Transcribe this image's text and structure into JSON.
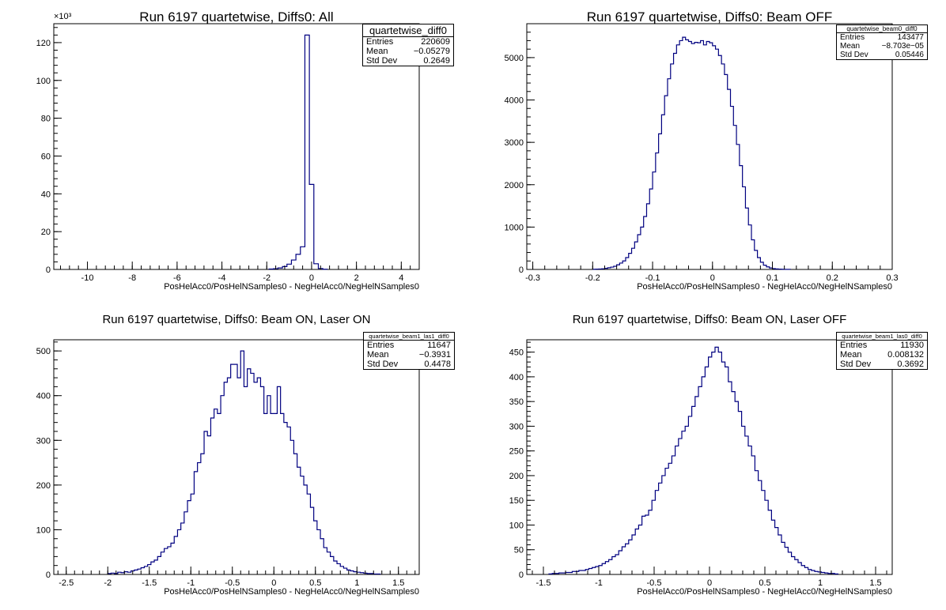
{
  "canvas_title": "",
  "xlabel_common": "PosHelAcc0/PosHelNSamples0 - NegHelAcc0/NegHelNSamples0",
  "colors": {
    "line": "#000080",
    "axis": "#000000",
    "background": "#ffffff"
  },
  "chart_data": [
    {
      "type": "bar",
      "title": "Run 6197 quartetwise, Diffs0: All",
      "xlabel": "PosHelAcc0/PosHelNSamples0 - NegHelAcc0/NegHelNSamples0",
      "ylabel": "",
      "y_exponent_label": "×10³",
      "xlim": [
        -11.5,
        4.8
      ],
      "ylim": [
        0,
        130000
      ],
      "xticks": [
        -10,
        -8,
        -6,
        -4,
        -2,
        0,
        2,
        4
      ],
      "yticks": [
        0,
        20000,
        40000,
        60000,
        80000,
        100000,
        120000
      ],
      "ytick_labels": [
        "0",
        "20",
        "40",
        "60",
        "80",
        "100",
        "120"
      ],
      "grid": false,
      "legend_position": "top-right",
      "stats": {
        "name": "quartetwise_diff0",
        "rows": [
          [
            "Entries",
            "220609"
          ],
          [
            "Mean",
            "−0.05279"
          ],
          [
            "Std Dev",
            "0.2649"
          ]
        ]
      },
      "bin_edges_start": -1.9,
      "bin_width": 0.2,
      "bin_values": [
        200,
        400,
        800,
        1500,
        2800,
        5000,
        8000,
        12000,
        124000,
        45000,
        3000,
        500,
        100
      ]
    },
    {
      "type": "bar",
      "title": "Run 6197 quartetwise, Diffs0: Beam OFF",
      "xlabel": "PosHelAcc0/PosHelNSamples0 - NegHelAcc0/NegHelNSamples0",
      "ylabel": "",
      "xlim": [
        -0.31,
        0.3
      ],
      "ylim": [
        0,
        5800
      ],
      "xticks": [
        -0.3,
        -0.2,
        -0.1,
        0,
        0.1,
        0.2,
        0.3
      ],
      "yticks": [
        0,
        1000,
        2000,
        3000,
        4000,
        5000
      ],
      "ytick_labels": [
        "0",
        "1000",
        "2000",
        "3000",
        "4000",
        "5000"
      ],
      "grid": false,
      "legend_position": "top-right",
      "stats": {
        "name": "quartetwise_beam0_diff0",
        "rows": [
          [
            "Entries",
            "143477"
          ],
          [
            "Mean",
            "−8.703e−05"
          ],
          [
            "Std Dev",
            "0.05446"
          ]
        ]
      },
      "bin_edges_start": -0.2,
      "bin_width": 0.005,
      "bin_values": [
        5,
        8,
        10,
        15,
        25,
        40,
        55,
        75,
        110,
        150,
        200,
        280,
        380,
        500,
        650,
        820,
        1000,
        1250,
        1550,
        1900,
        2300,
        2750,
        3200,
        3650,
        4100,
        4500,
        4850,
        5100,
        5300,
        5400,
        5480,
        5420,
        5380,
        5330,
        5360,
        5350,
        5400,
        5300,
        5380,
        5350,
        5280,
        5200,
        5050,
        4850,
        4600,
        4250,
        3850,
        3400,
        2950,
        2450,
        1950,
        1450,
        1050,
        700,
        450,
        280,
        170,
        100,
        60,
        35,
        20,
        12,
        8,
        5,
        3,
        2
      ]
    },
    {
      "type": "bar",
      "title": "Run 6197 quartetwise, Diffs0: Beam ON, Laser ON",
      "xlabel": "PosHelAcc0/PosHelNSamples0 - NegHelAcc0/NegHelNSamples0",
      "ylabel": "",
      "xlim": [
        -2.65,
        1.75
      ],
      "ylim": [
        0,
        525
      ],
      "xticks": [
        -2.5,
        -2,
        -1.5,
        -1,
        -0.5,
        0,
        0.5,
        1,
        1.5
      ],
      "yticks": [
        0,
        100,
        200,
        300,
        400,
        500
      ],
      "ytick_labels": [
        "0",
        "100",
        "200",
        "300",
        "400",
        "500"
      ],
      "grid": false,
      "legend_position": "top-right",
      "stats": {
        "name": "quartetwise_beam1_las1_diff0",
        "rows": [
          [
            "Entries",
            "11647"
          ],
          [
            "Mean",
            "−0.3931"
          ],
          [
            "Std Dev",
            "0.4478"
          ]
        ]
      },
      "bin_edges_start": -2.0,
      "bin_width": 0.04,
      "bin_values": [
        2,
        3,
        2,
        5,
        4,
        6,
        5,
        8,
        10,
        12,
        15,
        18,
        22,
        28,
        32,
        40,
        50,
        58,
        62,
        70,
        85,
        100,
        115,
        140,
        165,
        180,
        230,
        250,
        270,
        320,
        310,
        350,
        370,
        360,
        400,
        430,
        440,
        470,
        470,
        440,
        500,
        420,
        460,
        450,
        430,
        440,
        420,
        360,
        400,
        360,
        360,
        420,
        360,
        340,
        330,
        300,
        270,
        240,
        220,
        200,
        180,
        150,
        120,
        100,
        80,
        60,
        50,
        40,
        30,
        24,
        18,
        14,
        10,
        8,
        6,
        5,
        4,
        3,
        2,
        2,
        1,
        1
      ]
    },
    {
      "type": "bar",
      "title": "Run 6197 quartetwise, Diffs0: Beam ON, Laser OFF",
      "xlabel": "PosHelAcc0/PosHelNSamples0 - NegHelAcc0/NegHelNSamples0",
      "ylabel": "",
      "xlim": [
        -1.65,
        1.65
      ],
      "ylim": [
        0,
        475
      ],
      "xticks": [
        -1.5,
        -1,
        -0.5,
        0,
        0.5,
        1,
        1.5
      ],
      "yticks": [
        0,
        50,
        100,
        150,
        200,
        250,
        300,
        350,
        400,
        450
      ],
      "ytick_labels": [
        "0",
        "50",
        "100",
        "150",
        "200",
        "250",
        "300",
        "350",
        "400",
        "450"
      ],
      "grid": false,
      "legend_position": "top-right",
      "stats": {
        "name": "quartetwise_beam1_las0_diff0",
        "rows": [
          [
            "Entries",
            "11930"
          ],
          [
            "Mean",
            "0.008132"
          ],
          [
            "Std Dev",
            "0.3692"
          ]
        ]
      },
      "bin_edges_start": -1.45,
      "bin_width": 0.03,
      "bin_values": [
        1,
        2,
        2,
        3,
        3,
        4,
        4,
        6,
        6,
        8,
        8,
        10,
        12,
        14,
        16,
        18,
        22,
        26,
        30,
        36,
        40,
        48,
        56,
        62,
        70,
        80,
        92,
        100,
        118,
        120,
        130,
        150,
        170,
        185,
        200,
        215,
        225,
        240,
        260,
        275,
        290,
        300,
        320,
        340,
        360,
        380,
        400,
        420,
        440,
        450,
        460,
        450,
        430,
        420,
        390,
        370,
        350,
        330,
        300,
        280,
        260,
        240,
        210,
        190,
        170,
        150,
        130,
        110,
        95,
        80,
        65,
        55,
        45,
        36,
        30,
        24,
        18,
        14,
        10,
        8,
        6,
        5,
        4,
        3,
        2,
        2,
        1
      ]
    }
  ]
}
